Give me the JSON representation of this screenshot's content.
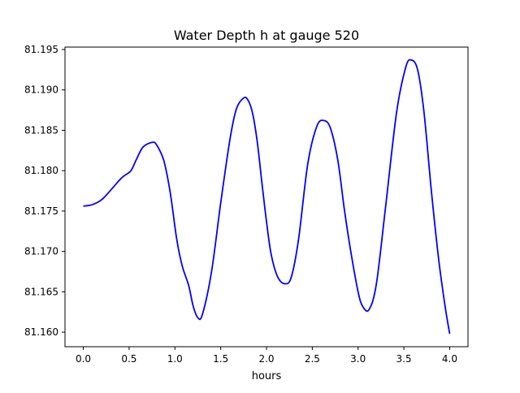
{
  "chart_data": {
    "type": "line",
    "title": "Water Depth h at gauge 520",
    "xlabel": "hours",
    "ylabel": "",
    "xlim": [
      -0.2,
      4.2
    ],
    "ylim": [
      81.1582,
      81.1953
    ],
    "grid": false,
    "legend": "none",
    "x_ticks": [
      0.0,
      0.5,
      1.0,
      1.5,
      2.0,
      2.5,
      3.0,
      3.5,
      4.0
    ],
    "x_tick_labels": [
      "0.0",
      "0.5",
      "1.0",
      "1.5",
      "2.0",
      "2.5",
      "3.0",
      "3.5",
      "4.0"
    ],
    "y_ticks": [
      81.16,
      81.165,
      81.17,
      81.175,
      81.18,
      81.185,
      81.19,
      81.195
    ],
    "y_tick_labels": [
      "81.160",
      "81.165",
      "81.170",
      "81.175",
      "81.180",
      "81.185",
      "81.190",
      "81.195"
    ],
    "series": [
      {
        "color": "#0000ff",
        "x": [
          0.0,
          0.1,
          0.2,
          0.3,
          0.4,
          0.45,
          0.52,
          0.58,
          0.65,
          0.75,
          0.8,
          0.88,
          0.95,
          1.02,
          1.08,
          1.15,
          1.2,
          1.25,
          1.3,
          1.4,
          1.5,
          1.6,
          1.67,
          1.75,
          1.8,
          1.85,
          1.9,
          1.95,
          2.0,
          2.05,
          2.12,
          2.2,
          2.27,
          2.35,
          2.45,
          2.55,
          2.63,
          2.7,
          2.78,
          2.85,
          2.92,
          3.0,
          3.05,
          3.12,
          3.2,
          3.3,
          3.42,
          3.52,
          3.58,
          3.65,
          3.72,
          3.8,
          3.88,
          3.95,
          4.0
        ],
        "y": [
          81.1756,
          81.1758,
          81.1764,
          81.1776,
          81.1789,
          81.1794,
          81.18,
          81.1814,
          81.1829,
          81.1835,
          81.1832,
          81.1812,
          81.1772,
          81.1715,
          81.1682,
          81.1658,
          81.1632,
          81.1618,
          81.1622,
          81.1675,
          81.176,
          81.1838,
          81.1876,
          81.189,
          81.1887,
          81.187,
          81.1835,
          81.1785,
          81.1737,
          81.1697,
          81.1669,
          81.166,
          81.1668,
          81.1715,
          81.1808,
          81.1855,
          81.1862,
          81.1852,
          81.1812,
          81.1752,
          81.17,
          81.165,
          81.1632,
          81.1628,
          81.166,
          81.1755,
          81.1872,
          81.1928,
          81.1937,
          81.1925,
          81.1872,
          81.1775,
          81.169,
          81.1632,
          81.1598
        ]
      }
    ]
  }
}
